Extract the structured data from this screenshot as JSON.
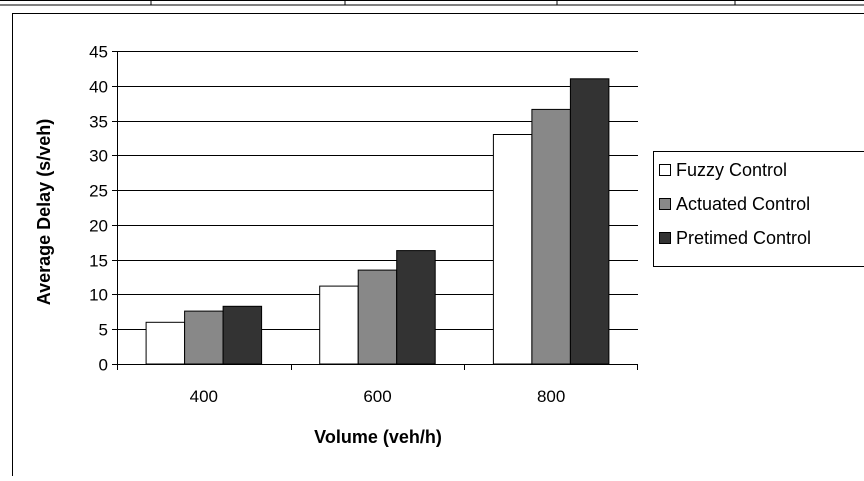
{
  "chart_data": {
    "type": "bar",
    "title": "",
    "xlabel": "Volume (veh/h)",
    "ylabel": "Average Delay (s/veh)",
    "categories": [
      "400",
      "600",
      "800"
    ],
    "series": [
      {
        "name": "Fuzzy Control",
        "values": [
          6.0,
          11.2,
          33.0
        ],
        "color": "#ffffff"
      },
      {
        "name": "Actuated Control",
        "values": [
          7.6,
          13.5,
          36.6
        ],
        "color": "#888888"
      },
      {
        "name": "Pretimed Control",
        "values": [
          8.3,
          16.3,
          41.0
        ],
        "color": "#333333"
      }
    ],
    "ylim": [
      0,
      45
    ],
    "yticks": [
      "0",
      "5",
      "10",
      "15",
      "20",
      "25",
      "30",
      "35",
      "40",
      "45"
    ],
    "grid": true,
    "legend_position": "right"
  }
}
